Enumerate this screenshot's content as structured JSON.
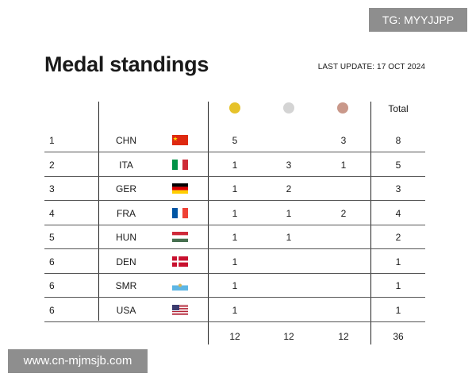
{
  "title": "Medal standings",
  "last_update": "LAST UPDATE: 17 OCT 2024",
  "header": {
    "total_label": "Total"
  },
  "medal_colors": {
    "gold": "#e6c22a",
    "silver": "#d4d4d4",
    "bronze": "#c9988a"
  },
  "rows": [
    {
      "rank": "1",
      "country": "CHN",
      "flag": "china-flag",
      "gold": "5",
      "silver": "",
      "bronze": "3",
      "total": "8"
    },
    {
      "rank": "2",
      "country": "ITA",
      "flag": "italy-flag",
      "gold": "1",
      "silver": "3",
      "bronze": "1",
      "total": "5"
    },
    {
      "rank": "3",
      "country": "GER",
      "flag": "germany-flag",
      "gold": "1",
      "silver": "2",
      "bronze": "",
      "total": "3"
    },
    {
      "rank": "4",
      "country": "FRA",
      "flag": "france-flag",
      "gold": "1",
      "silver": "1",
      "bronze": "2",
      "total": "4"
    },
    {
      "rank": "5",
      "country": "HUN",
      "flag": "hungary-flag",
      "gold": "1",
      "silver": "1",
      "bronze": "",
      "total": "2"
    },
    {
      "rank": "6",
      "country": "DEN",
      "flag": "denmark-flag",
      "gold": "1",
      "silver": "",
      "bronze": "",
      "total": "1"
    },
    {
      "rank": "6",
      "country": "SMR",
      "flag": "san-marino-flag",
      "gold": "1",
      "silver": "",
      "bronze": "",
      "total": "1"
    },
    {
      "rank": "6",
      "country": "USA",
      "flag": "usa-flag",
      "gold": "1",
      "silver": "",
      "bronze": "",
      "total": "1"
    }
  ],
  "totals": {
    "gold": "12",
    "silver": "12",
    "bronze": "12",
    "total": "36"
  },
  "watermarks": {
    "top_right": "TG: MYYJJPP",
    "bottom_left": "www.cn-mjmsjb.com"
  }
}
